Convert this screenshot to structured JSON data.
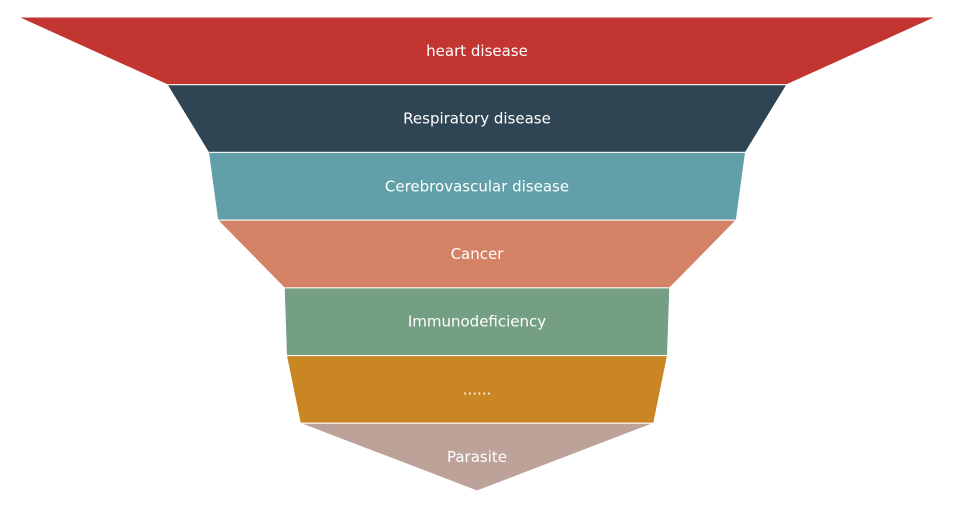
{
  "chart_data": {
    "type": "funnel",
    "stages": [
      {
        "label": "heart disease",
        "color": "#c23531"
      },
      {
        "label": "Respiratory disease",
        "color": "#2f4554"
      },
      {
        "label": "Cerebrovascular disease",
        "color": "#61a0a8"
      },
      {
        "label": "Cancer",
        "color": "#d48265"
      },
      {
        "label": "Immunodeficiency",
        "color": "#749f83"
      },
      {
        "label": "......",
        "color": "#ca8622"
      },
      {
        "label": "Parasite",
        "color": "#bda29a"
      }
    ],
    "widths": [
      1.0,
      0.675,
      0.585,
      0.565,
      0.42,
      0.415,
      0.385,
      0.0
    ]
  }
}
